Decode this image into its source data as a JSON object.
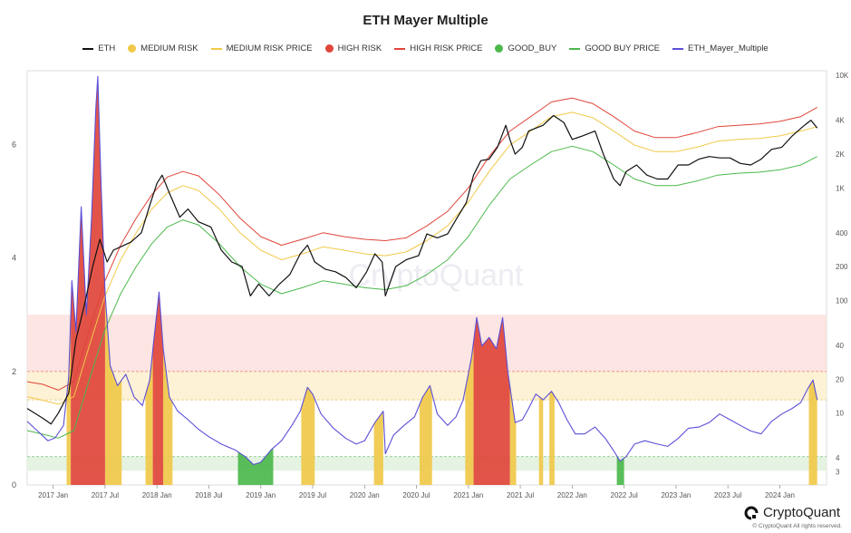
{
  "chart_data": {
    "type": "line",
    "title": "ETH Mayer Multiple",
    "legend_placement": "top",
    "legend": [
      {
        "name": "ETH",
        "kind": "line",
        "color": "#111111"
      },
      {
        "name": "MEDIUM RISK",
        "kind": "dot",
        "color": "#f0c94a"
      },
      {
        "name": "MEDIUM RISK PRICE",
        "kind": "line",
        "color": "#f0c94a"
      },
      {
        "name": "HIGH RISK",
        "kind": "dot",
        "color": "#e0453a"
      },
      {
        "name": "HIGH RISK PRICE",
        "kind": "line",
        "color": "#e0453a"
      },
      {
        "name": "GOOD_BUY",
        "kind": "dot",
        "color": "#4cb84c"
      },
      {
        "name": "GOOD BUY PRICE",
        "kind": "line",
        "color": "#4cb84c"
      },
      {
        "name": "ETH_Mayer_Multiple",
        "kind": "line",
        "color": "#5b4fd6"
      }
    ],
    "x_ticks": [
      "2017 Jan",
      "2017 Jul",
      "2018 Jan",
      "2018 Jul",
      "2019 Jan",
      "2019 Jul",
      "2020 Jan",
      "2020 Jul",
      "2021 Jan",
      "2021 Jul",
      "2022 Jan",
      "2022 Jul",
      "2023 Jan",
      "2023 Jul",
      "2024 Jan"
    ],
    "x_range": [
      2016.75,
      2024.45
    ],
    "y_left": {
      "ticks": [
        "0",
        "2",
        "4",
        "6"
      ],
      "range": [
        0,
        7.3
      ]
    },
    "y_right": {
      "scale": "log",
      "ticks": [
        "3",
        "4",
        "10",
        "20",
        "40",
        "100",
        "200",
        "400",
        "1K",
        "2K",
        "4K",
        "10K"
      ],
      "range": [
        2.3,
        11000
      ]
    },
    "zones": {
      "high_risk_band": [
        2.0,
        3.0
      ],
      "medium_risk_band": [
        1.5,
        2.0
      ],
      "good_buy_band": [
        0.25,
        0.5
      ]
    },
    "mayer_multiple": [
      [
        2016.75,
        1.12
      ],
      [
        2016.85,
        0.95
      ],
      [
        2016.95,
        0.78
      ],
      [
        2017.02,
        0.83
      ],
      [
        2017.1,
        1.05
      ],
      [
        2017.15,
        1.9
      ],
      [
        2017.18,
        3.6
      ],
      [
        2017.22,
        2.7
      ],
      [
        2017.27,
        4.9
      ],
      [
        2017.32,
        3.0
      ],
      [
        2017.37,
        4.7
      ],
      [
        2017.41,
        6.6
      ],
      [
        2017.43,
        7.2
      ],
      [
        2017.46,
        5.4
      ],
      [
        2017.5,
        3.4
      ],
      [
        2017.55,
        2.1
      ],
      [
        2017.62,
        1.75
      ],
      [
        2017.7,
        1.95
      ],
      [
        2017.78,
        1.55
      ],
      [
        2017.86,
        1.4
      ],
      [
        2017.93,
        1.85
      ],
      [
        2017.97,
        2.55
      ],
      [
        2018.02,
        3.4
      ],
      [
        2018.06,
        2.4
      ],
      [
        2018.12,
        1.55
      ],
      [
        2018.2,
        1.3
      ],
      [
        2018.3,
        1.15
      ],
      [
        2018.4,
        0.98
      ],
      [
        2018.5,
        0.85
      ],
      [
        2018.62,
        0.72
      ],
      [
        2018.75,
        0.62
      ],
      [
        2018.85,
        0.5
      ],
      [
        2018.93,
        0.36
      ],
      [
        2019.0,
        0.4
      ],
      [
        2019.1,
        0.62
      ],
      [
        2019.2,
        0.78
      ],
      [
        2019.3,
        1.05
      ],
      [
        2019.38,
        1.3
      ],
      [
        2019.45,
        1.72
      ],
      [
        2019.5,
        1.6
      ],
      [
        2019.58,
        1.25
      ],
      [
        2019.7,
        1.0
      ],
      [
        2019.82,
        0.82
      ],
      [
        2019.92,
        0.72
      ],
      [
        2020.0,
        0.78
      ],
      [
        2020.1,
        1.1
      ],
      [
        2020.18,
        1.3
      ],
      [
        2020.2,
        0.55
      ],
      [
        2020.28,
        0.88
      ],
      [
        2020.38,
        1.05
      ],
      [
        2020.48,
        1.2
      ],
      [
        2020.56,
        1.55
      ],
      [
        2020.63,
        1.75
      ],
      [
        2020.7,
        1.25
      ],
      [
        2020.8,
        1.05
      ],
      [
        2020.88,
        1.2
      ],
      [
        2020.95,
        1.5
      ],
      [
        2021.03,
        2.25
      ],
      [
        2021.08,
        2.95
      ],
      [
        2021.13,
        2.45
      ],
      [
        2021.2,
        2.6
      ],
      [
        2021.27,
        2.4
      ],
      [
        2021.33,
        2.95
      ],
      [
        2021.38,
        2.0
      ],
      [
        2021.45,
        1.1
      ],
      [
        2021.52,
        1.15
      ],
      [
        2021.58,
        1.35
      ],
      [
        2021.65,
        1.6
      ],
      [
        2021.72,
        1.5
      ],
      [
        2021.8,
        1.65
      ],
      [
        2021.87,
        1.45
      ],
      [
        2021.95,
        1.15
      ],
      [
        2022.03,
        0.9
      ],
      [
        2022.12,
        0.9
      ],
      [
        2022.22,
        1.02
      ],
      [
        2022.32,
        0.82
      ],
      [
        2022.4,
        0.6
      ],
      [
        2022.46,
        0.42
      ],
      [
        2022.52,
        0.5
      ],
      [
        2022.6,
        0.72
      ],
      [
        2022.7,
        0.78
      ],
      [
        2022.82,
        0.72
      ],
      [
        2022.92,
        0.68
      ],
      [
        2023.02,
        0.82
      ],
      [
        2023.12,
        1.0
      ],
      [
        2023.22,
        1.02
      ],
      [
        2023.32,
        1.1
      ],
      [
        2023.42,
        1.25
      ],
      [
        2023.52,
        1.15
      ],
      [
        2023.62,
        1.05
      ],
      [
        2023.72,
        0.95
      ],
      [
        2023.82,
        0.9
      ],
      [
        2023.92,
        1.12
      ],
      [
        2024.02,
        1.25
      ],
      [
        2024.12,
        1.35
      ],
      [
        2024.2,
        1.45
      ],
      [
        2024.27,
        1.7
      ],
      [
        2024.32,
        1.85
      ],
      [
        2024.36,
        1.5
      ]
    ],
    "eth_price": [
      [
        2016.75,
        11
      ],
      [
        2016.9,
        9
      ],
      [
        2016.98,
        8
      ],
      [
        2017.05,
        10
      ],
      [
        2017.15,
        15
      ],
      [
        2017.22,
        45
      ],
      [
        2017.3,
        90
      ],
      [
        2017.38,
        200
      ],
      [
        2017.45,
        350
      ],
      [
        2017.52,
        220
      ],
      [
        2017.58,
        280
      ],
      [
        2017.65,
        300
      ],
      [
        2017.75,
        330
      ],
      [
        2017.85,
        400
      ],
      [
        2017.93,
        700
      ],
      [
        2018.0,
        1100
      ],
      [
        2018.05,
        1300
      ],
      [
        2018.12,
        900
      ],
      [
        2018.22,
        550
      ],
      [
        2018.3,
        650
      ],
      [
        2018.4,
        500
      ],
      [
        2018.52,
        450
      ],
      [
        2018.62,
        280
      ],
      [
        2018.72,
        220
      ],
      [
        2018.82,
        200
      ],
      [
        2018.9,
        110
      ],
      [
        2018.98,
        140
      ],
      [
        2019.08,
        110
      ],
      [
        2019.18,
        140
      ],
      [
        2019.28,
        170
      ],
      [
        2019.38,
        260
      ],
      [
        2019.45,
        310
      ],
      [
        2019.52,
        220
      ],
      [
        2019.62,
        190
      ],
      [
        2019.72,
        180
      ],
      [
        2019.82,
        160
      ],
      [
        2019.92,
        130
      ],
      [
        2020.02,
        180
      ],
      [
        2020.1,
        260
      ],
      [
        2020.17,
        220
      ],
      [
        2020.2,
        110
      ],
      [
        2020.3,
        200
      ],
      [
        2020.4,
        230
      ],
      [
        2020.52,
        250
      ],
      [
        2020.6,
        390
      ],
      [
        2020.7,
        360
      ],
      [
        2020.8,
        390
      ],
      [
        2020.9,
        560
      ],
      [
        2020.98,
        740
      ],
      [
        2021.05,
        1300
      ],
      [
        2021.12,
        1750
      ],
      [
        2021.2,
        1800
      ],
      [
        2021.28,
        2300
      ],
      [
        2021.36,
        3600
      ],
      [
        2021.4,
        2700
      ],
      [
        2021.45,
        2000
      ],
      [
        2021.52,
        2300
      ],
      [
        2021.58,
        3200
      ],
      [
        2021.65,
        3400
      ],
      [
        2021.72,
        3600
      ],
      [
        2021.82,
        4400
      ],
      [
        2021.92,
        3800
      ],
      [
        2022.0,
        2700
      ],
      [
        2022.1,
        2900
      ],
      [
        2022.22,
        3200
      ],
      [
        2022.3,
        2000
      ],
      [
        2022.4,
        1200
      ],
      [
        2022.46,
        1050
      ],
      [
        2022.52,
        1400
      ],
      [
        2022.62,
        1600
      ],
      [
        2022.72,
        1300
      ],
      [
        2022.82,
        1200
      ],
      [
        2022.92,
        1200
      ],
      [
        2023.02,
        1600
      ],
      [
        2023.12,
        1600
      ],
      [
        2023.22,
        1800
      ],
      [
        2023.32,
        1900
      ],
      [
        2023.42,
        1850
      ],
      [
        2023.52,
        1850
      ],
      [
        2023.62,
        1650
      ],
      [
        2023.72,
        1600
      ],
      [
        2023.82,
        1800
      ],
      [
        2023.92,
        2200
      ],
      [
        2024.02,
        2300
      ],
      [
        2024.12,
        2900
      ],
      [
        2024.22,
        3500
      ],
      [
        2024.3,
        4000
      ],
      [
        2024.36,
        3400
      ]
    ],
    "medium_risk_price": [
      [
        2016.75,
        14
      ],
      [
        2016.9,
        13
      ],
      [
        2017.05,
        12
      ],
      [
        2017.2,
        14
      ],
      [
        2017.35,
        40
      ],
      [
        2017.5,
        110
      ],
      [
        2017.65,
        230
      ],
      [
        2017.8,
        400
      ],
      [
        2017.95,
        650
      ],
      [
        2018.1,
        900
      ],
      [
        2018.25,
        1050
      ],
      [
        2018.4,
        950
      ],
      [
        2018.6,
        650
      ],
      [
        2018.8,
        400
      ],
      [
        2019.0,
        280
      ],
      [
        2019.2,
        230
      ],
      [
        2019.4,
        260
      ],
      [
        2019.6,
        300
      ],
      [
        2019.8,
        280
      ],
      [
        2020.0,
        260
      ],
      [
        2020.2,
        250
      ],
      [
        2020.4,
        270
      ],
      [
        2020.6,
        340
      ],
      [
        2020.8,
        460
      ],
      [
        2021.0,
        750
      ],
      [
        2021.2,
        1400
      ],
      [
        2021.4,
        2400
      ],
      [
        2021.6,
        3200
      ],
      [
        2021.8,
        4300
      ],
      [
        2022.0,
        4700
      ],
      [
        2022.2,
        4200
      ],
      [
        2022.4,
        3200
      ],
      [
        2022.6,
        2400
      ],
      [
        2022.8,
        2100
      ],
      [
        2023.0,
        2100
      ],
      [
        2023.2,
        2300
      ],
      [
        2023.4,
        2600
      ],
      [
        2023.6,
        2700
      ],
      [
        2023.8,
        2750
      ],
      [
        2024.0,
        2900
      ],
      [
        2024.2,
        3200
      ],
      [
        2024.36,
        3500
      ]
    ],
    "high_risk_price": [
      [
        2016.75,
        19
      ],
      [
        2016.9,
        18
      ],
      [
        2017.05,
        16
      ],
      [
        2017.2,
        19
      ],
      [
        2017.35,
        55
      ],
      [
        2017.5,
        150
      ],
      [
        2017.65,
        310
      ],
      [
        2017.8,
        540
      ],
      [
        2017.95,
        870
      ],
      [
        2018.1,
        1250
      ],
      [
        2018.25,
        1400
      ],
      [
        2018.4,
        1280
      ],
      [
        2018.6,
        870
      ],
      [
        2018.8,
        540
      ],
      [
        2019.0,
        370
      ],
      [
        2019.2,
        310
      ],
      [
        2019.4,
        350
      ],
      [
        2019.6,
        400
      ],
      [
        2019.8,
        370
      ],
      [
        2020.0,
        350
      ],
      [
        2020.2,
        340
      ],
      [
        2020.4,
        360
      ],
      [
        2020.6,
        460
      ],
      [
        2020.8,
        620
      ],
      [
        2021.0,
        1000
      ],
      [
        2021.2,
        1900
      ],
      [
        2021.4,
        3200
      ],
      [
        2021.6,
        4300
      ],
      [
        2021.8,
        5800
      ],
      [
        2022.0,
        6300
      ],
      [
        2022.2,
        5600
      ],
      [
        2022.4,
        4300
      ],
      [
        2022.6,
        3200
      ],
      [
        2022.8,
        2800
      ],
      [
        2023.0,
        2800
      ],
      [
        2023.2,
        3100
      ],
      [
        2023.4,
        3500
      ],
      [
        2023.6,
        3600
      ],
      [
        2023.8,
        3700
      ],
      [
        2024.0,
        3900
      ],
      [
        2024.2,
        4300
      ],
      [
        2024.36,
        5200
      ]
    ],
    "good_buy_price": [
      [
        2016.75,
        7
      ],
      [
        2016.9,
        6.5
      ],
      [
        2017.05,
        6
      ],
      [
        2017.2,
        7
      ],
      [
        2017.35,
        20
      ],
      [
        2017.5,
        55
      ],
      [
        2017.65,
        115
      ],
      [
        2017.8,
        200
      ],
      [
        2017.95,
        320
      ],
      [
        2018.1,
        450
      ],
      [
        2018.25,
        520
      ],
      [
        2018.4,
        470
      ],
      [
        2018.6,
        320
      ],
      [
        2018.8,
        200
      ],
      [
        2019.0,
        140
      ],
      [
        2019.2,
        115
      ],
      [
        2019.4,
        130
      ],
      [
        2019.6,
        150
      ],
      [
        2019.8,
        140
      ],
      [
        2020.0,
        130
      ],
      [
        2020.2,
        125
      ],
      [
        2020.4,
        135
      ],
      [
        2020.6,
        170
      ],
      [
        2020.8,
        230
      ],
      [
        2021.0,
        370
      ],
      [
        2021.2,
        700
      ],
      [
        2021.4,
        1200
      ],
      [
        2021.6,
        1600
      ],
      [
        2021.8,
        2100
      ],
      [
        2022.0,
        2350
      ],
      [
        2022.2,
        2100
      ],
      [
        2022.4,
        1600
      ],
      [
        2022.6,
        1200
      ],
      [
        2022.8,
        1050
      ],
      [
        2023.0,
        1050
      ],
      [
        2023.2,
        1150
      ],
      [
        2023.4,
        1300
      ],
      [
        2023.6,
        1350
      ],
      [
        2023.8,
        1380
      ],
      [
        2024.0,
        1450
      ],
      [
        2024.2,
        1600
      ],
      [
        2024.36,
        1900
      ]
    ],
    "high_risk_periods": [
      [
        2017.17,
        2017.5
      ],
      [
        2017.96,
        2018.06
      ],
      [
        2021.05,
        2021.4
      ]
    ],
    "medium_risk_periods": [
      [
        2017.13,
        2017.17
      ],
      [
        2017.5,
        2017.66
      ],
      [
        2017.89,
        2017.96
      ],
      [
        2018.06,
        2018.15
      ],
      [
        2019.39,
        2019.52
      ],
      [
        2020.09,
        2020.18
      ],
      [
        2020.53,
        2020.65
      ],
      [
        2020.97,
        2021.05
      ],
      [
        2021.4,
        2021.46
      ],
      [
        2021.68,
        2021.72
      ],
      [
        2021.78,
        2021.83
      ],
      [
        2024.28,
        2024.36
      ]
    ],
    "good_buy_periods": [
      [
        2018.78,
        2019.12
      ],
      [
        2022.43,
        2022.5
      ]
    ]
  },
  "brand": {
    "name": "CryptoQuant",
    "copyright": "© CryptoQuant All rights reserved."
  }
}
